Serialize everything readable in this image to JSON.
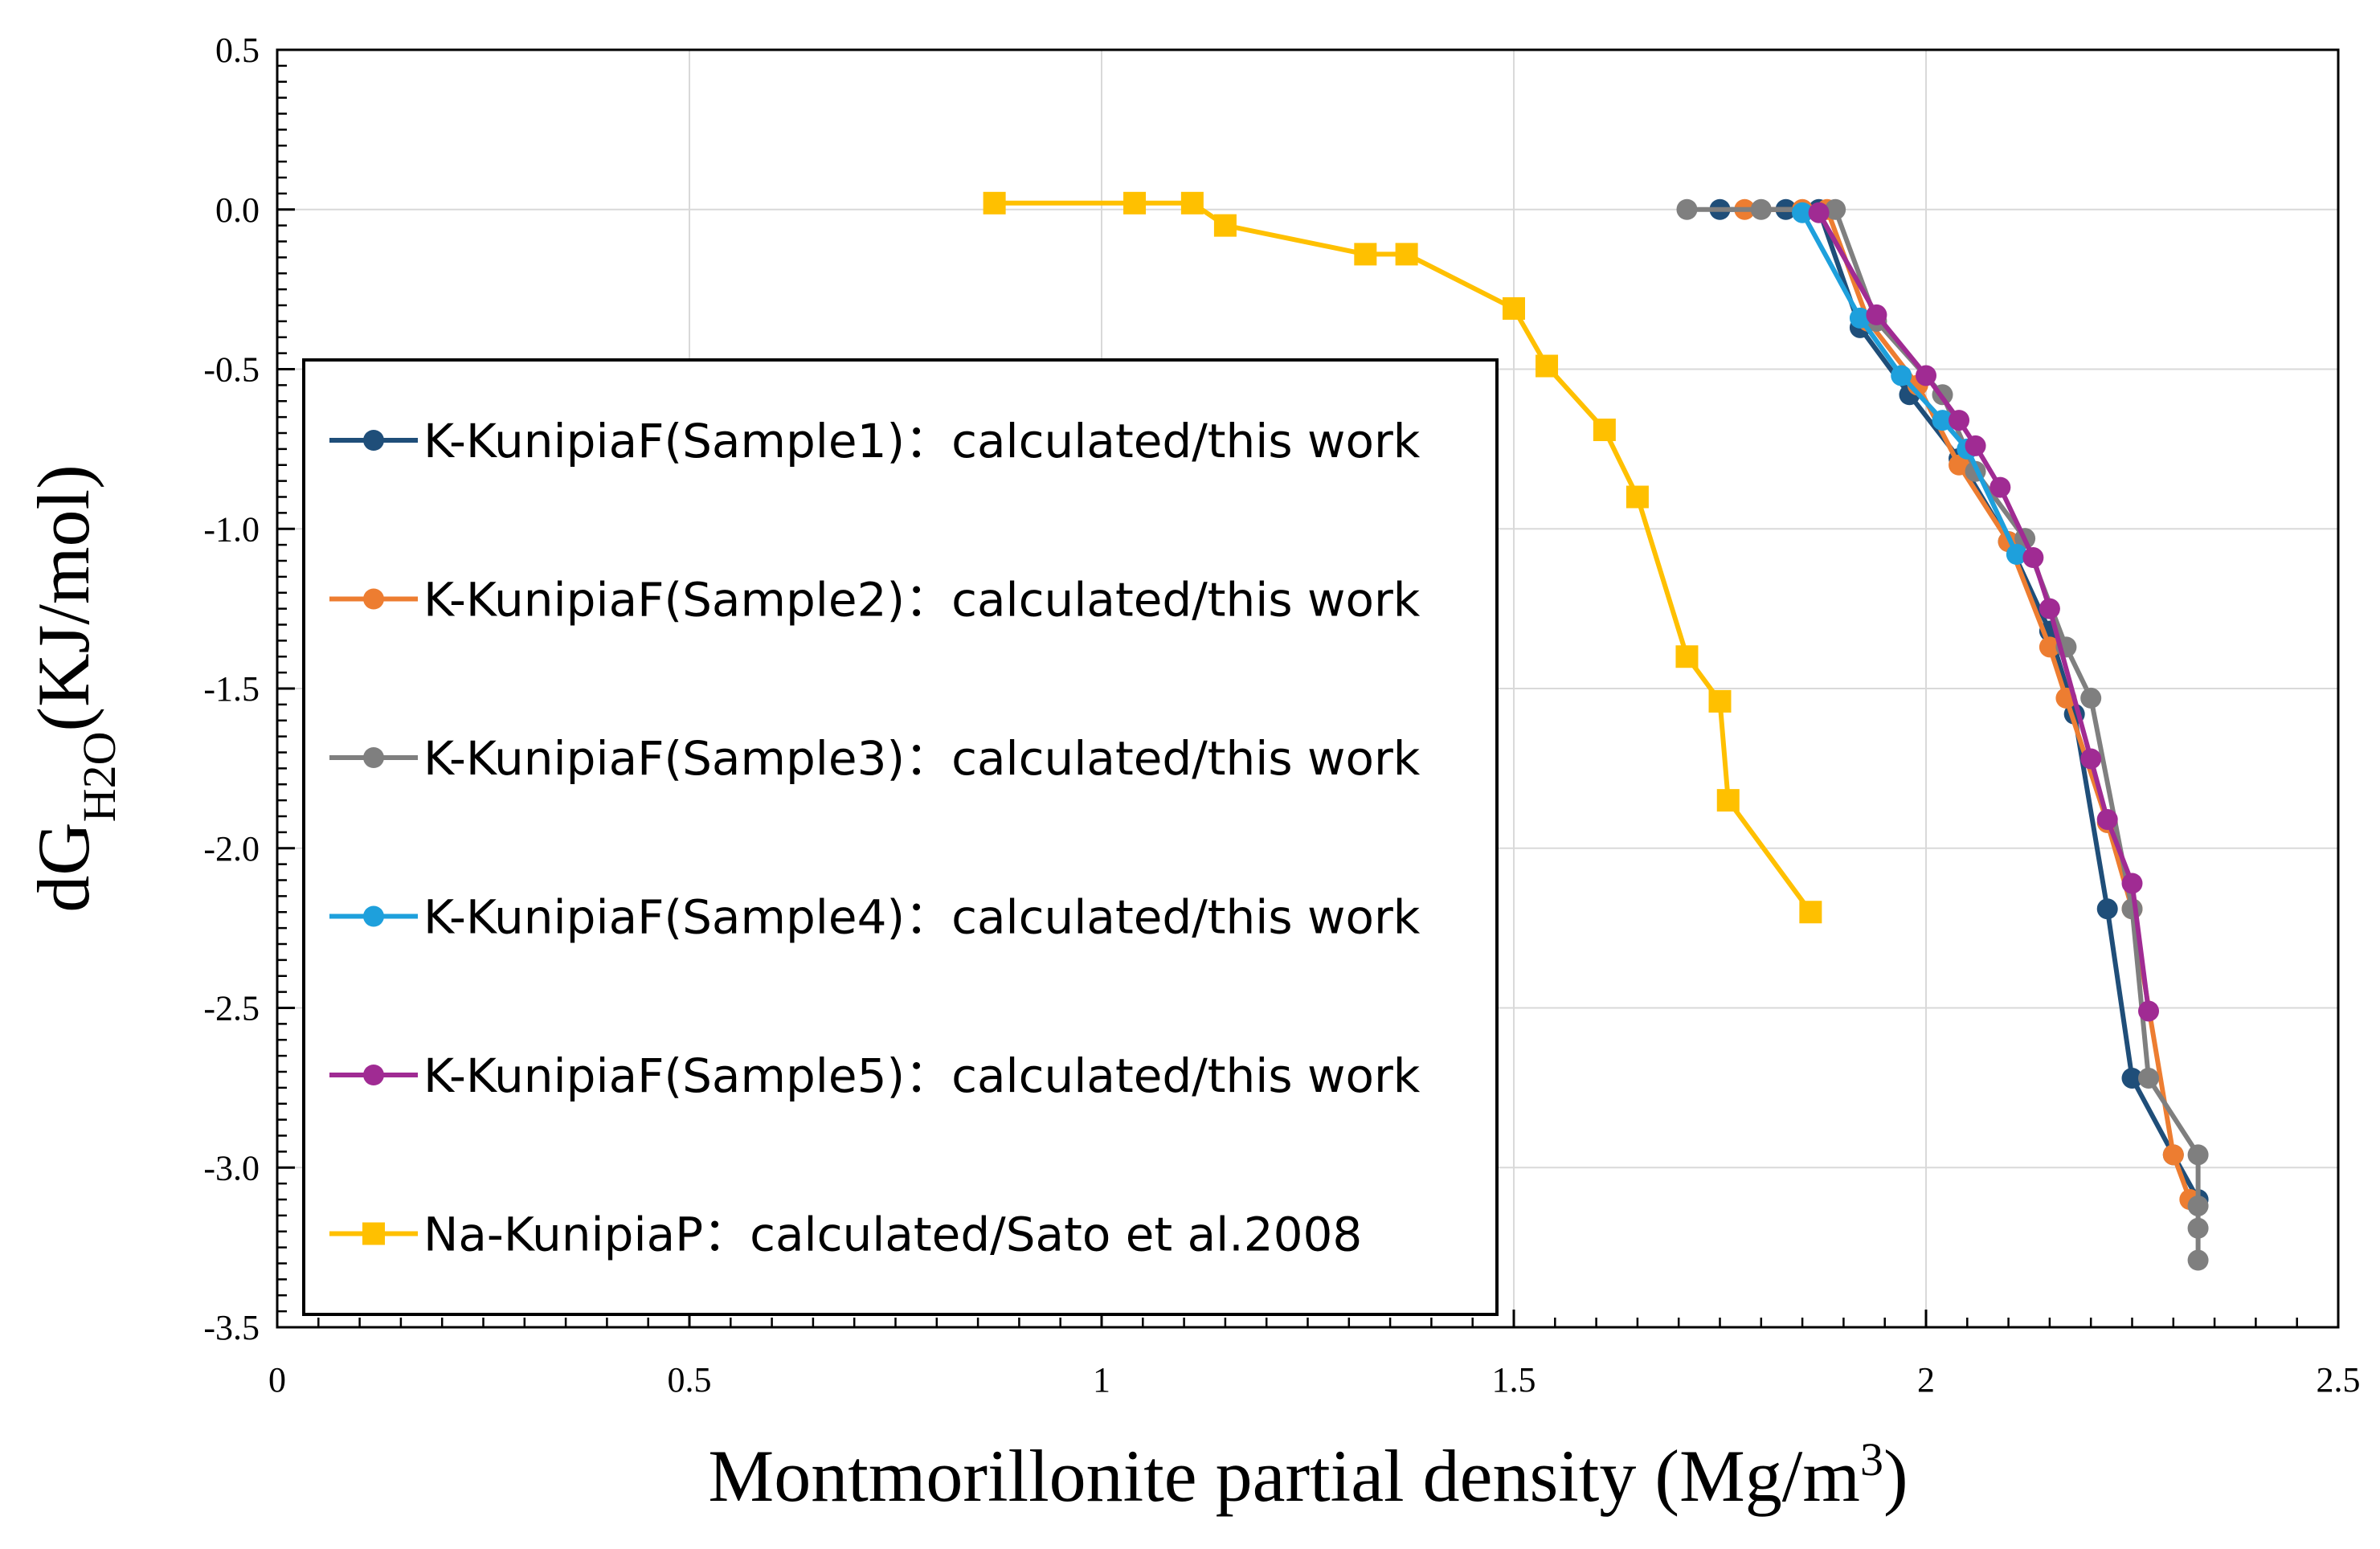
{
  "chart_data": {
    "type": "line",
    "xlabel": "Montmorillonite partial density (Mg/m³)",
    "xlabel_parts": {
      "main": "Montmorillonite partial density (Mg/m",
      "sup": "3",
      "end": ")"
    },
    "ylabel_parts": {
      "main": "dG",
      "sub": "H2O",
      "end": "(KJ/mol)"
    },
    "xlim": [
      0,
      2.5
    ],
    "ylim": [
      -3.5,
      0.5
    ],
    "x_ticks": [
      0,
      0.5,
      1,
      1.5,
      2,
      2.5
    ],
    "x_tick_labels": [
      "0",
      "0.5",
      "1",
      "1.5",
      "2",
      "2.5"
    ],
    "y_ticks": [
      0.5,
      0,
      -0.5,
      -1,
      -1.5,
      -2,
      -2.5,
      -3,
      -3.5
    ],
    "y_tick_labels": [
      "0.5",
      "0.0",
      "-0.5",
      "-1.0",
      "-1.5",
      "-2.0",
      "-2.5",
      "-3.0",
      "-3.5"
    ],
    "grid": true,
    "legend_position": "left-center",
    "series": [
      {
        "name": "K-KunipiaF(Sample1)：calculated/this work",
        "color": "#1f4e79",
        "marker": "circle",
        "x": [
          1.75,
          1.83,
          1.87,
          1.92,
          1.98,
          2.04,
          2.1,
          2.15,
          2.18,
          2.22,
          2.25,
          2.3,
          2.33
        ],
        "y": [
          0.0,
          0.0,
          0.0,
          -0.37,
          -0.58,
          -0.78,
          -1.04,
          -1.32,
          -1.58,
          -2.19,
          -2.72,
          -2.96,
          -3.1
        ]
      },
      {
        "name": "K-KunipiaF(Sample2)：calculated/this work",
        "color": "#ed7d31",
        "marker": "circle",
        "x": [
          1.78,
          1.85,
          1.88,
          1.93,
          1.99,
          2.04,
          2.1,
          2.15,
          2.17,
          2.22,
          2.25,
          2.3,
          2.32
        ],
        "y": [
          0.0,
          0.0,
          0.0,
          -0.35,
          -0.55,
          -0.8,
          -1.04,
          -1.37,
          -1.53,
          -1.92,
          -2.19,
          -2.96,
          -3.1
        ]
      },
      {
        "name": "K-KunipiaF(Sample3)：calculated/this work",
        "color": "#7f7f7f",
        "marker": "circle",
        "x": [
          1.71,
          1.8,
          1.89,
          1.94,
          2.02,
          2.06,
          2.12,
          2.17,
          2.2,
          2.25,
          2.27,
          2.33,
          2.33,
          2.33,
          2.33
        ],
        "y": [
          0.0,
          0.0,
          0.0,
          -0.35,
          -0.58,
          -0.82,
          -1.03,
          -1.37,
          -1.53,
          -2.19,
          -2.72,
          -2.96,
          -3.12,
          -3.19,
          -3.29
        ]
      },
      {
        "name": "K-KunipiaF(Sample4)：calculated/this work",
        "color": "#1ea0dc",
        "marker": "circle",
        "x": [
          1.85,
          1.92,
          1.97,
          2.02,
          2.05,
          2.11
        ],
        "y": [
          -0.01,
          -0.34,
          -0.52,
          -0.66,
          -0.75,
          -1.08
        ]
      },
      {
        "name": "K-KunipiaF(Sample5)：calculated/this work",
        "color": "#a02b93",
        "marker": "circle",
        "x": [
          1.87,
          1.94,
          2.0,
          2.04,
          2.06,
          2.09,
          2.13,
          2.15,
          2.2,
          2.22,
          2.25,
          2.27
        ],
        "y": [
          -0.01,
          -0.33,
          -0.52,
          -0.66,
          -0.74,
          -0.87,
          -1.09,
          -1.25,
          -1.72,
          -1.91,
          -2.11,
          -2.51
        ]
      },
      {
        "name": "Na-KunipiaP：calculated/Sato et al.2008",
        "color": "#ffc000",
        "marker": "square",
        "x": [
          0.87,
          1.04,
          1.11,
          1.15,
          1.32,
          1.37,
          1.5,
          1.54,
          1.61,
          1.65,
          1.71,
          1.75,
          1.76,
          1.86
        ],
        "y": [
          0.02,
          0.02,
          0.02,
          -0.05,
          -0.14,
          -0.14,
          -0.31,
          -0.49,
          -0.69,
          -0.9,
          -1.4,
          -1.54,
          -1.85,
          -2.2
        ]
      }
    ]
  }
}
